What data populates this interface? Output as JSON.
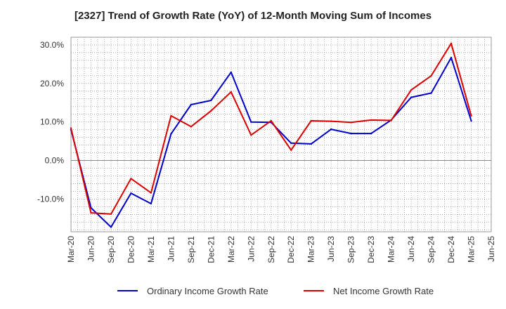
{
  "chart_data": {
    "type": "line",
    "title": "[2327]  Trend of Growth Rate (YoY) of 12-Month Moving Sum of Incomes",
    "xlabel": "",
    "ylabel": "",
    "x_ticks": [
      "Mar-20",
      "Jun-20",
      "Sep-20",
      "Dec-20",
      "Mar-21",
      "Jun-21",
      "Sep-21",
      "Dec-21",
      "Mar-22",
      "Jun-22",
      "Sep-22",
      "Dec-22",
      "Mar-23",
      "Jun-23",
      "Sep-23",
      "Dec-23",
      "Mar-24",
      "Jun-24",
      "Sep-24",
      "Dec-24",
      "Mar-25",
      "Jun-25"
    ],
    "y_ticks": [
      "30.0%",
      "20.0%",
      "10.0%",
      "0.0%",
      "-10.0%"
    ],
    "y_tick_values": [
      30,
      20,
      10,
      0,
      -10
    ],
    "ylim": [
      -18.5,
      32
    ],
    "grid": true,
    "legend_position": "bottom",
    "series": [
      {
        "name": "Ordinary Income Growth Rate",
        "color": "#0000cc",
        "values": [
          8.0,
          -12.3,
          -17.3,
          -8.5,
          -11.2,
          6.9,
          14.5,
          15.6,
          22.9,
          10.0,
          9.9,
          4.5,
          4.3,
          8.1,
          7.0,
          7.0,
          10.5,
          16.4,
          17.5,
          26.7,
          10.3
        ]
      },
      {
        "name": "Net Income Growth Rate",
        "color": "#dd0000",
        "values": [
          8.4,
          -13.6,
          -13.9,
          -4.7,
          -8.4,
          11.6,
          8.8,
          12.9,
          17.8,
          6.6,
          10.3,
          2.7,
          10.3,
          10.2,
          9.9,
          10.5,
          10.4,
          18.3,
          22.0,
          30.4,
          11.6
        ]
      }
    ]
  }
}
